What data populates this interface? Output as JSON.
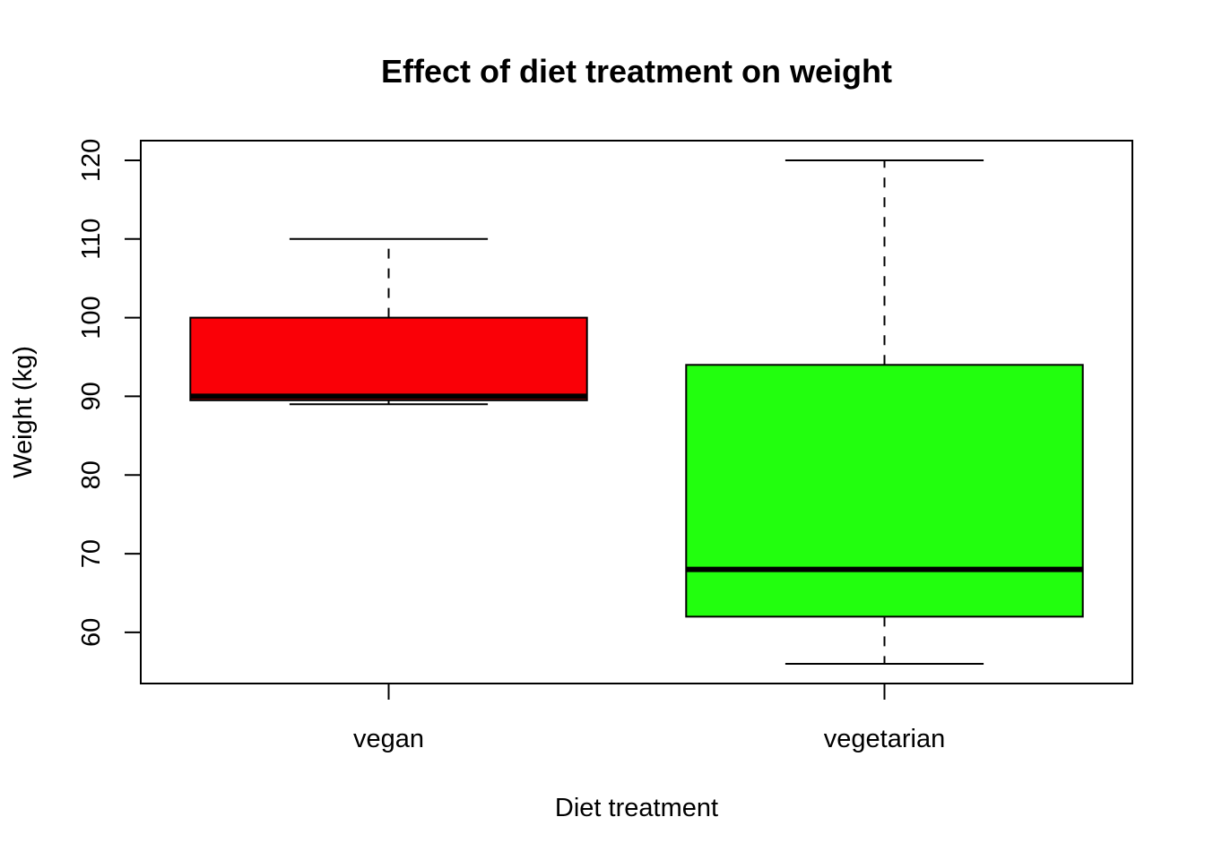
{
  "chart_data": {
    "type": "box",
    "title": "Effect of diet treatment on weight",
    "xlabel": "Diet treatment",
    "ylabel": "Weight (kg)",
    "ylim": [
      53.5,
      122.5
    ],
    "yticks": [
      60,
      70,
      80,
      90,
      100,
      110,
      120
    ],
    "categories": [
      "vegan",
      "vegetarian"
    ],
    "boxes": [
      {
        "category": "vegan",
        "whisker_low": 89,
        "q1": 89.5,
        "median": 90,
        "q3": 100,
        "whisker_high": 110,
        "color": "#FA0007"
      },
      {
        "category": "vegetarian",
        "whisker_low": 56,
        "q1": 62,
        "median": 68,
        "q3": 94,
        "whisker_high": 120,
        "color": "#22FF0E"
      }
    ],
    "grid": false,
    "legend": "none"
  }
}
